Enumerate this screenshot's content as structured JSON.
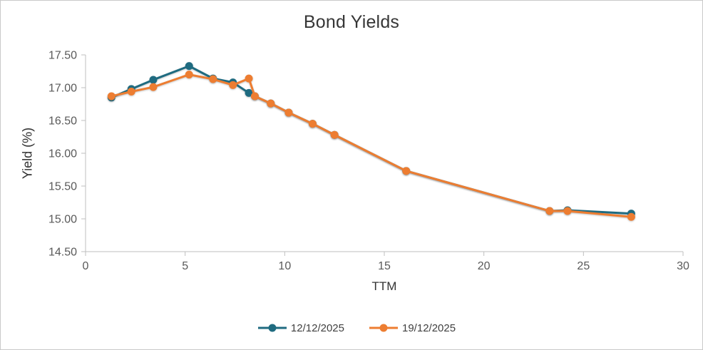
{
  "window": {
    "background": "#ffffff",
    "border_color": "#c9c9c9"
  },
  "chart_data": {
    "type": "line",
    "title": "Bond Yields",
    "xlabel": "TTM",
    "ylabel": "Yield (%)",
    "xlim": [
      0,
      30
    ],
    "ylim": [
      14.5,
      17.5
    ],
    "x_ticks": [
      0,
      5,
      10,
      15,
      20,
      25,
      30
    ],
    "y_ticks": [
      14.5,
      15.0,
      15.5,
      16.0,
      16.5,
      17.0,
      17.5
    ],
    "y_tick_labels": [
      "14.50",
      "15.00",
      "15.50",
      "16.00",
      "16.50",
      "17.00",
      "17.50"
    ],
    "grid": false,
    "legend_position": "bottom-center",
    "style": {
      "axis_color": "#bfbfbf",
      "tick_color": "#bfbfbf",
      "tick_label_color": "#595959",
      "tick_label_size": 16,
      "marker_radius": 5.5,
      "line_width": 3
    },
    "x_shared": [
      1.3,
      2.3,
      3.4,
      5.2,
      6.4,
      7.4,
      8.2,
      8.5,
      9.3,
      10.2,
      11.4,
      12.5,
      16.1,
      23.3,
      24.2,
      27.4
    ],
    "series": [
      {
        "name": "12/12/2025",
        "color": "#1F6B80",
        "x": [
          1.3,
          2.3,
          3.4,
          5.2,
          6.4,
          7.4,
          8.2,
          8.5,
          9.3,
          10.2,
          11.4,
          12.5,
          16.1,
          23.3,
          24.2,
          27.4
        ],
        "y": [
          16.85,
          16.98,
          17.12,
          17.33,
          17.14,
          17.08,
          16.92,
          16.87,
          16.76,
          16.62,
          16.45,
          16.28,
          15.73,
          15.12,
          15.13,
          15.08
        ]
      },
      {
        "name": "19/12/2025",
        "color": "#ED7D31",
        "x": [
          1.3,
          2.3,
          3.4,
          5.2,
          6.4,
          7.4,
          8.2,
          8.5,
          9.3,
          10.2,
          11.4,
          12.5,
          16.1,
          23.3,
          24.2,
          27.4
        ],
        "y": [
          16.87,
          16.94,
          17.01,
          17.2,
          17.13,
          17.04,
          17.14,
          16.87,
          16.76,
          16.62,
          16.45,
          16.28,
          15.73,
          15.12,
          15.12,
          15.03
        ]
      }
    ]
  }
}
